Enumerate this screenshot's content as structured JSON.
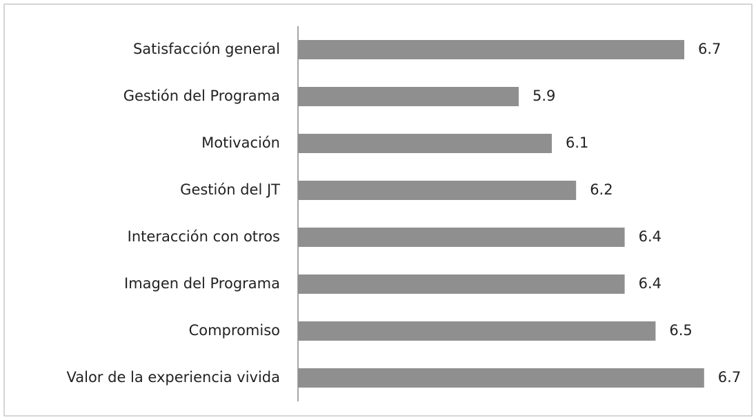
{
  "chart_data": {
    "type": "hbar",
    "categories": [
      "Satisfacción general",
      "Gestión del Programa",
      "Motivación",
      "Gestión del JT",
      "Interacción con otros",
      "Imagen del Programa",
      "Compromiso",
      "Valor de la experiencia vivida"
    ],
    "values": [
      6.65,
      5.9,
      6.05,
      6.16,
      6.38,
      6.38,
      6.52,
      6.74
    ],
    "value_labels": [
      "6.7",
      "5.9",
      "6.1",
      "6.2",
      "6.4",
      "6.4",
      "6.5",
      "6.7"
    ],
    "color": "#8f8f8f",
    "xlim": [
      4.9,
      6.8
    ]
  }
}
